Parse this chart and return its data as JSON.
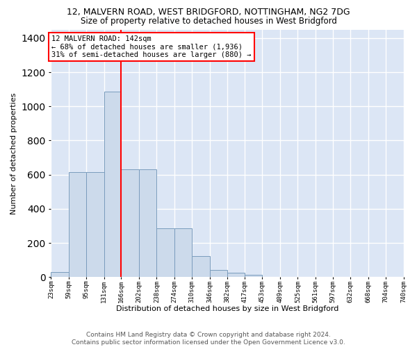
{
  "title1": "12, MALVERN ROAD, WEST BRIDGFORD, NOTTINGHAM, NG2 7DG",
  "title2": "Size of property relative to detached houses in West Bridgford",
  "xlabel": "Distribution of detached houses by size in West Bridgford",
  "ylabel": "Number of detached properties",
  "footer1": "Contains HM Land Registry data © Crown copyright and database right 2024.",
  "footer2": "Contains public sector information licensed under the Open Government Licence v3.0.",
  "bin_labels": [
    "23sqm",
    "59sqm",
    "95sqm",
    "131sqm",
    "166sqm",
    "202sqm",
    "238sqm",
    "274sqm",
    "310sqm",
    "346sqm",
    "382sqm",
    "417sqm",
    "453sqm",
    "489sqm",
    "525sqm",
    "561sqm",
    "597sqm",
    "632sqm",
    "668sqm",
    "704sqm",
    "740sqm"
  ],
  "bar_values": [
    30,
    615,
    615,
    1085,
    630,
    630,
    285,
    285,
    125,
    43,
    25,
    15,
    0,
    0,
    0,
    0,
    0,
    0,
    0,
    0
  ],
  "bar_color": "#ccdaeb",
  "bar_edge_color": "#7a9cbd",
  "ylim": [
    0,
    1450
  ],
  "yticks": [
    0,
    200,
    400,
    600,
    800,
    1000,
    1200,
    1400
  ],
  "annotation_title": "12 MALVERN ROAD: 142sqm",
  "annotation_line1": "← 68% of detached houses are smaller (1,936)",
  "annotation_line2": "31% of semi-detached houses are larger (880) →",
  "bg_color": "#dce6f5",
  "grid_color": "#ffffff",
  "red_line_bin_index": 3,
  "title1_fontsize": 9,
  "title2_fontsize": 8.5,
  "ylabel_fontsize": 8,
  "xlabel_fontsize": 8,
  "footer_fontsize": 6.5,
  "annot_fontsize": 7.5
}
